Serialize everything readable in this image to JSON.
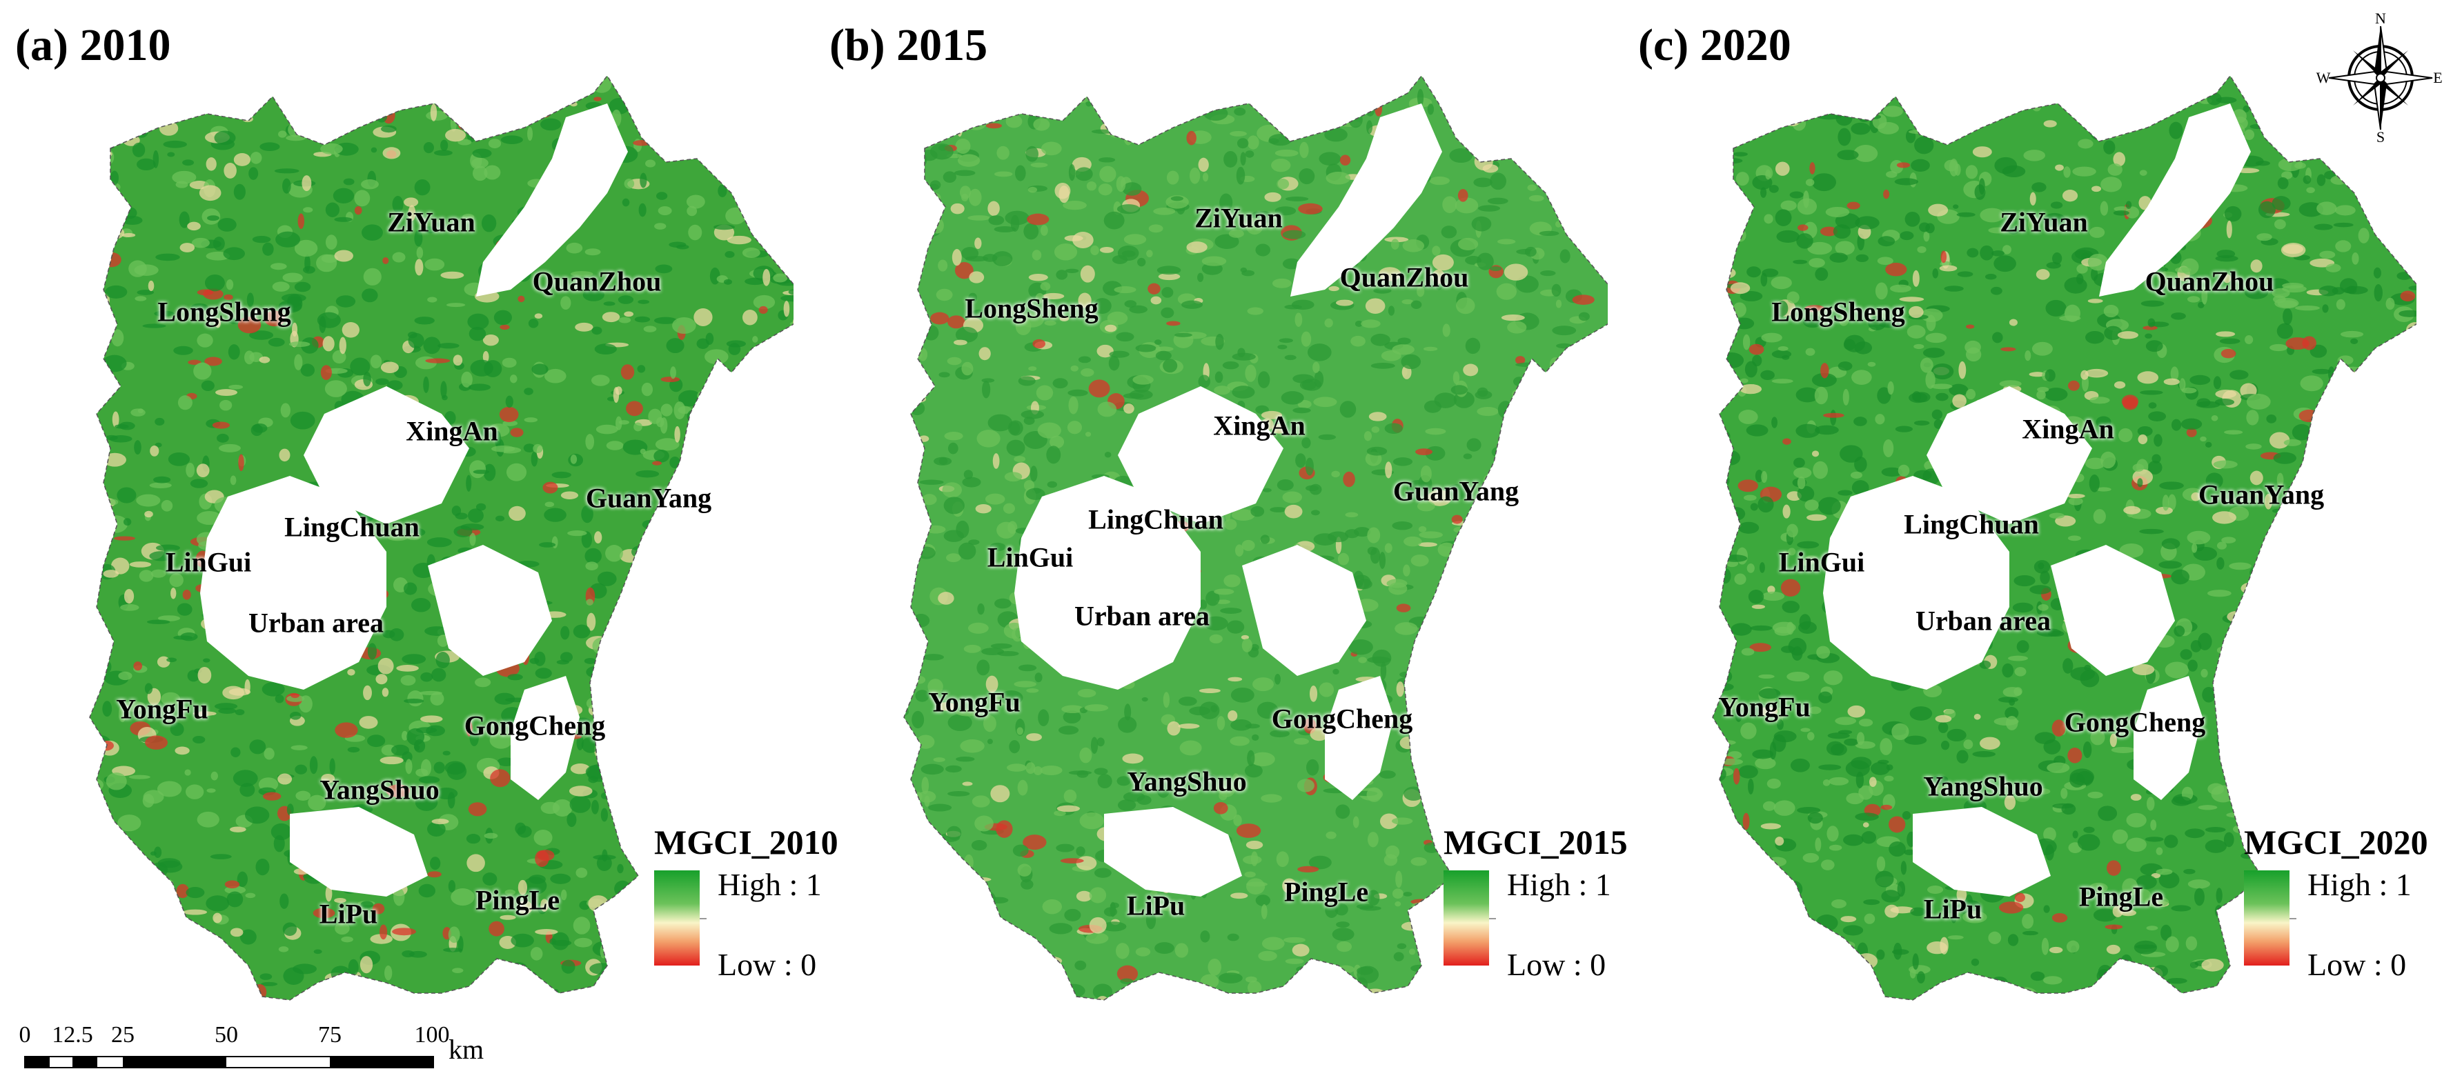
{
  "colors": {
    "high": "#17a02b",
    "mid": "#f9f5c8",
    "low": "#e21e1c"
  },
  "panels": [
    {
      "title": "(a) 2010",
      "legend": {
        "title": "MGCI_2010",
        "high": "High : 1",
        "low": "Low : 0"
      },
      "labels": [
        "ZiYuan",
        "QuanZhou",
        "LongSheng",
        "XingAn",
        "GuanYang",
        "LingChuan",
        "LinGui",
        "Urban area",
        "YongFu",
        "GongCheng",
        "YangShuo",
        "LiPu",
        "PingLe"
      ]
    },
    {
      "title": "(b) 2015",
      "legend": {
        "title": "MGCI_2015",
        "high": "High : 1",
        "low": "Low : 0"
      },
      "labels": [
        "ZiYuan",
        "QuanZhou",
        "LongSheng",
        "XingAn",
        "GuanYang",
        "LingChuan",
        "LinGui",
        "Urban area",
        "YongFu",
        "GongCheng",
        "YangShuo",
        "LiPu",
        "PingLe"
      ]
    },
    {
      "title": "(c) 2020",
      "legend": {
        "title": "MGCI_2020",
        "high": "High : 1",
        "low": "Low : 0"
      },
      "labels": [
        "ZiYuan",
        "QuanZhou",
        "LongSheng",
        "XingAn",
        "GuanYang",
        "LingChuan",
        "LinGui",
        "Urban area",
        "YongFu",
        "GongCheng",
        "YangShuo",
        "LiPu",
        "PingLe"
      ]
    }
  ],
  "scalebar": {
    "ticks": [
      "0",
      "12.5",
      "25",
      "50",
      "75",
      "100"
    ],
    "unit": "km"
  },
  "compass": {
    "n": "N",
    "s": "S",
    "e": "E",
    "w": "W"
  }
}
